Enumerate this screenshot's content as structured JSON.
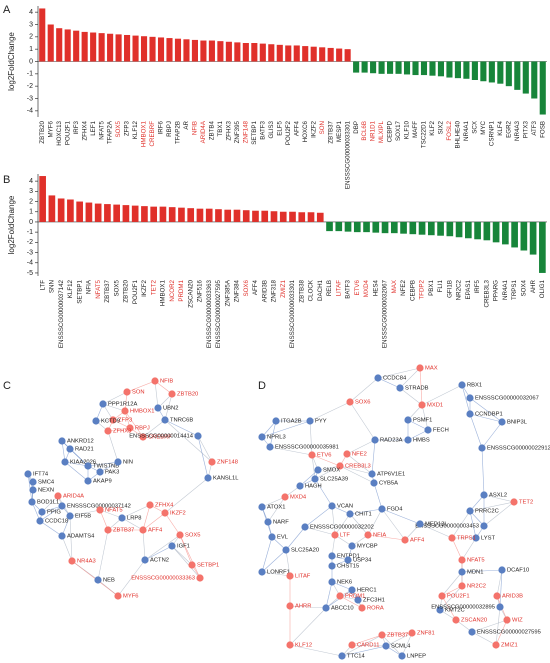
{
  "chart_data": [
    {
      "type": "bar",
      "panel": "A",
      "ylabel": "log2FoldChange",
      "categories": [
        "ZBTB20",
        "MYF6",
        "HOXC13",
        "POU2F1",
        "IRF3",
        "ZFHX4",
        "LEF1",
        "NFAT5",
        "TFAP2A",
        "SOX5",
        "ZFP3",
        "KLF12",
        "HMBOX1",
        "CREBRF",
        "IRF6",
        "RBPJ",
        "TFAP2B",
        "AR",
        "NFIB",
        "ARID4A",
        "ZBTB4",
        "TBX1",
        "ZFHX3",
        "ZNF395",
        "ZNF148",
        "SETBP1",
        "BATF3",
        "GLIS3",
        "ELF5",
        "POU2F2",
        "AFF4",
        "HOXC6",
        "IKZF2",
        "SON",
        "ZBTB37",
        "MESP1",
        "ENSSSCG00000033301",
        "DBP",
        "BCL6B",
        "NR1D1",
        "MLXIPL",
        "CEBPD",
        "SOX17",
        "KLF10",
        "MAFF",
        "TSC22D1",
        "KLF2",
        "SIX2",
        "FOSL2",
        "BHLHE40",
        "NR4A1",
        "SCX",
        "MYC",
        "CSRNP1",
        "KLF4",
        "EGR2",
        "NR4A3",
        "PITX3",
        "ATF3",
        "FOSB"
      ],
      "values": [
        4.3,
        3.0,
        2.7,
        2.6,
        2.5,
        2.4,
        2.35,
        2.3,
        2.25,
        2.2,
        2.15,
        2.1,
        2.05,
        2.0,
        1.95,
        1.9,
        1.85,
        1.8,
        1.75,
        1.7,
        1.7,
        1.65,
        1.6,
        1.55,
        1.5,
        1.5,
        1.45,
        1.4,
        1.35,
        1.3,
        1.3,
        1.25,
        1.2,
        1.15,
        1.1,
        1.05,
        1.0,
        -0.9,
        -0.9,
        -0.95,
        -1.0,
        -1.0,
        -1.0,
        -1.05,
        -1.1,
        -1.1,
        -1.15,
        -1.2,
        -1.3,
        -1.35,
        -1.4,
        -1.5,
        -1.6,
        -1.7,
        -1.8,
        -2.0,
        -2.3,
        -2.6,
        -3.0,
        -4.3
      ],
      "label_colors": [
        "#222",
        "#222",
        "#222",
        "#222",
        "#222",
        "#222",
        "#222",
        "#222",
        "#222",
        "#e0302a",
        "#222",
        "#222",
        "#e0302a",
        "#e0302a",
        "#222",
        "#222",
        "#222",
        "#222",
        "#e0302a",
        "#e0302a",
        "#222",
        "#222",
        "#222",
        "#222",
        "#e0302a",
        "#222",
        "#222",
        "#222",
        "#222",
        "#222",
        "#222",
        "#222",
        "#222",
        "#e0302a",
        "#222",
        "#222",
        "#222",
        "#222",
        "#e0302a",
        "#e0302a",
        "#e0302a",
        "#222",
        "#222",
        "#222",
        "#222",
        "#222",
        "#222",
        "#222",
        "#e0302a",
        "#222",
        "#222",
        "#222",
        "#222",
        "#222",
        "#222",
        "#222",
        "#222",
        "#222",
        "#222",
        "#222"
      ],
      "colors": {
        "positive": "#e0302a",
        "negative": "#17853a"
      },
      "ylim": [
        -4.5,
        4.5
      ],
      "yticks": [
        4,
        3,
        2,
        1,
        0,
        -1,
        -2,
        -3,
        -4
      ]
    },
    {
      "type": "bar",
      "panel": "B",
      "ylabel": "log2FoldChange",
      "categories": [
        "LTF",
        "SNN",
        "ENSSSCG00000037142",
        "KLF12",
        "SETBP1",
        "NFIA",
        "NFAT5",
        "ZBTB37",
        "SOX5",
        "ZBTB20",
        "POU2F1",
        "IKZF2",
        "TET2",
        "HMBOX1",
        "NCOR2",
        "PRDM1",
        "ZSCAN20",
        "ZNF516",
        "ENSSSCG00000033363",
        "ENSSSCG00000027595",
        "ZNF385A",
        "ZNF384",
        "SOX6",
        "AFF4",
        "ARID3B",
        "ZNF318",
        "ZMIZ1",
        "ENSSSCG00000033301",
        "ZBTB38",
        "CLOCK",
        "DACH1",
        "RELB",
        "LITAF",
        "BATF3",
        "ETV6",
        "MXD4",
        "HES4",
        "ENSSSCG00000032067",
        "MAX",
        "NFE2",
        "CEBPB",
        "TFDP2",
        "PBX1",
        "FLI1",
        "GFI1B",
        "NR2C2",
        "EPAS1",
        "IRF5",
        "CREB3L3",
        "PPARG",
        "NR4A1",
        "TRPS1",
        "SOX4",
        "AHR",
        "OLIG1"
      ],
      "values": [
        4.5,
        2.6,
        2.3,
        2.2,
        2.0,
        1.9,
        1.8,
        1.75,
        1.7,
        1.65,
        1.6,
        1.55,
        1.5,
        1.5,
        1.45,
        1.4,
        1.35,
        1.3,
        1.3,
        1.25,
        1.2,
        1.2,
        1.15,
        1.1,
        1.1,
        1.05,
        1.0,
        1.0,
        0.95,
        0.95,
        0.9,
        -0.9,
        -0.9,
        -0.95,
        -1.0,
        -1.0,
        -1.05,
        -1.1,
        -1.1,
        -1.15,
        -1.2,
        -1.25,
        -1.3,
        -1.35,
        -1.4,
        -1.5,
        -1.6,
        -1.7,
        -1.8,
        -2.0,
        -2.2,
        -2.5,
        -2.8,
        -3.2,
        -5.0
      ],
      "label_colors": [
        "#222",
        "#222",
        "#222",
        "#222",
        "#222",
        "#222",
        "#e0302a",
        "#222",
        "#222",
        "#222",
        "#222",
        "#222",
        "#e0302a",
        "#222",
        "#e0302a",
        "#e0302a",
        "#222",
        "#222",
        "#222",
        "#222",
        "#222",
        "#222",
        "#e0302a",
        "#222",
        "#222",
        "#222",
        "#e0302a",
        "#222",
        "#222",
        "#222",
        "#222",
        "#222",
        "#e0302a",
        "#222",
        "#e0302a",
        "#e0302a",
        "#222",
        "#222",
        "#e0302a",
        "#222",
        "#222",
        "#e0302a",
        "#222",
        "#222",
        "#222",
        "#222",
        "#222",
        "#222",
        "#222",
        "#222",
        "#222",
        "#222",
        "#222",
        "#222",
        "#222"
      ],
      "colors": {
        "positive": "#e0302a",
        "negative": "#17853a"
      },
      "ylim": [
        -5.3,
        4.7
      ],
      "yticks": [
        4,
        3,
        2,
        1,
        0,
        -1,
        -2,
        -3,
        -4,
        -5
      ]
    }
  ],
  "networks": [
    {
      "panel": "C",
      "nodes": [
        {
          "label": "NFIB",
          "color": "#f4736b"
        },
        {
          "label": "SON",
          "color": "#f4736b"
        },
        {
          "label": "ZBTB20",
          "color": "#f4736b"
        },
        {
          "label": "PPP1R12A",
          "color": "#5a7fc2"
        },
        {
          "label": "UBN2",
          "color": "#5a7fc2"
        },
        {
          "label": "HMBOX1",
          "color": "#f4736b"
        },
        {
          "label": "ZFP3",
          "color": "#f4736b"
        },
        {
          "label": "KCTD9",
          "color": "#5a7fc2"
        },
        {
          "label": "TNRC6B",
          "color": "#5a7fc2"
        },
        {
          "label": "RBPJ",
          "color": "#f4736b"
        },
        {
          "label": "ZFHX3",
          "color": "#f4736b"
        },
        {
          "label": "CREBRF",
          "color": "#f4736b"
        },
        {
          "label": "ENSSSCG00000014414",
          "color": "#5a7fc2"
        },
        {
          "label": "ANKRD12",
          "color": "#5a7fc2"
        },
        {
          "label": "RAD21",
          "color": "#5a7fc2"
        },
        {
          "label": "KIAA2026",
          "color": "#5a7fc2"
        },
        {
          "label": "TWISTNB",
          "color": "#5a7fc2"
        },
        {
          "label": "NIN",
          "color": "#5a7fc2"
        },
        {
          "label": "PAK3",
          "color": "#5a7fc2"
        },
        {
          "label": "AKAP9",
          "color": "#5a7fc2"
        },
        {
          "label": "IFT74",
          "color": "#5a7fc2"
        },
        {
          "label": "SMC4",
          "color": "#5a7fc2"
        },
        {
          "label": "NEXN",
          "color": "#5a7fc2"
        },
        {
          "label": "ARID4A",
          "color": "#f4736b"
        },
        {
          "label": "BOD1L1",
          "color": "#5a7fc2"
        },
        {
          "label": "ENSSSCG00000037142",
          "color": "#5a7fc2"
        },
        {
          "label": "PPIG",
          "color": "#5a7fc2"
        },
        {
          "label": "EIF5B",
          "color": "#5a7fc2"
        },
        {
          "label": "CCDC18",
          "color": "#5a7fc2"
        },
        {
          "label": "ZNF148",
          "color": "#f4736b"
        },
        {
          "label": "KANSL1L",
          "color": "#5a7fc2"
        },
        {
          "label": "NFAT5",
          "color": "#f4736b"
        },
        {
          "label": "LRP8",
          "color": "#5a7fc2"
        },
        {
          "label": "ZBTB37",
          "color": "#f4736b"
        },
        {
          "label": "ZFHX4",
          "color": "#f4736b"
        },
        {
          "label": "IKZF2",
          "color": "#f4736b"
        },
        {
          "label": "AFF4",
          "color": "#f4736b"
        },
        {
          "label": "SOX5",
          "color": "#f4736b"
        },
        {
          "label": "IGF1",
          "color": "#5a7fc2"
        },
        {
          "label": "ADAMTS4",
          "color": "#5a7fc2"
        },
        {
          "label": "ACTN2",
          "color": "#5a7fc2"
        },
        {
          "label": "NR4A3",
          "color": "#f4736b"
        },
        {
          "label": "SETBP1",
          "color": "#f4736b"
        },
        {
          "label": "ENSSSCG00000033363",
          "color": "#f4736b"
        },
        {
          "label": "NEB",
          "color": "#5a7fc2"
        },
        {
          "label": "MYF6",
          "color": "#f4736b"
        }
      ]
    },
    {
      "panel": "D",
      "nodes": [
        {
          "label": "MAX",
          "color": "#f4736b"
        },
        {
          "label": "CCDC84",
          "color": "#5a7fc2"
        },
        {
          "label": "RBX1",
          "color": "#5a7fc2"
        },
        {
          "label": "STRADB",
          "color": "#5a7fc2"
        },
        {
          "label": "ENSSSCG00000032067",
          "color": "#5a7fc2"
        },
        {
          "label": "SOX6",
          "color": "#f4736b"
        },
        {
          "label": "MXD1",
          "color": "#f4736b"
        },
        {
          "label": "CCNDBP1",
          "color": "#5a7fc2"
        },
        {
          "label": "PSMF1",
          "color": "#5a7fc2"
        },
        {
          "label": "BNIP3L",
          "color": "#5a7fc2"
        },
        {
          "label": "ITGA2B",
          "color": "#5a7fc2"
        },
        {
          "label": "PYY",
          "color": "#5a7fc2"
        },
        {
          "label": "FECH",
          "color": "#5a7fc2"
        },
        {
          "label": "HMBS",
          "color": "#5a7fc2"
        },
        {
          "label": "RAD23A",
          "color": "#5a7fc2"
        },
        {
          "label": "ENSSSCG00000022912",
          "color": "#5a7fc2"
        },
        {
          "label": "NPRL3",
          "color": "#5a7fc2"
        },
        {
          "label": "ENSSSCG00000035981",
          "color": "#5a7fc2"
        },
        {
          "label": "ETV6",
          "color": "#f4736b"
        },
        {
          "label": "NFE2",
          "color": "#f4736b"
        },
        {
          "label": "CREB3L3",
          "color": "#f4736b"
        },
        {
          "label": "SMOX",
          "color": "#5a7fc2"
        },
        {
          "label": "SLC25A39",
          "color": "#5a7fc2"
        },
        {
          "label": "HAGH",
          "color": "#5a7fc2"
        },
        {
          "label": "ATP6V1E1",
          "color": "#5a7fc2"
        },
        {
          "label": "CYB5A",
          "color": "#5a7fc2"
        },
        {
          "label": "MXD4",
          "color": "#f4736b"
        },
        {
          "label": "ATOX1",
          "color": "#5a7fc2"
        },
        {
          "label": "NARF",
          "color": "#5a7fc2"
        },
        {
          "label": "EVL",
          "color": "#5a7fc2"
        },
        {
          "label": "VCAN",
          "color": "#5a7fc2"
        },
        {
          "label": "CHIT1",
          "color": "#5a7fc2"
        },
        {
          "label": "ENSSSCG00000032202",
          "color": "#5a7fc2"
        },
        {
          "label": "FGD4",
          "color": "#5a7fc2"
        },
        {
          "label": "LTF",
          "color": "#f4736b"
        },
        {
          "label": "NFIA",
          "color": "#f4736b"
        },
        {
          "label": "ASXL2",
          "color": "#5a7fc2"
        },
        {
          "label": "TET2",
          "color": "#f4736b"
        },
        {
          "label": "PRRC2C",
          "color": "#5a7fc2"
        },
        {
          "label": "ENSSSCG00000003453",
          "color": "#5a7fc2"
        },
        {
          "label": "LYST",
          "color": "#5a7fc2"
        },
        {
          "label": "TRPS1",
          "color": "#f4736b"
        },
        {
          "label": "MED13L",
          "color": "#5a7fc2"
        },
        {
          "label": "AFF4",
          "color": "#f4736b"
        },
        {
          "label": "NFAT5",
          "color": "#f4736b"
        },
        {
          "label": "SLC25A20",
          "color": "#5a7fc2"
        },
        {
          "label": "ENTPD1",
          "color": "#5a7fc2"
        },
        {
          "label": "CHST15",
          "color": "#5a7fc2"
        },
        {
          "label": "MYCBP",
          "color": "#5a7fc2"
        },
        {
          "label": "USP34",
          "color": "#5a7fc2"
        },
        {
          "label": "LONRF1",
          "color": "#5a7fc2"
        },
        {
          "label": "LITAF",
          "color": "#f4736b"
        },
        {
          "label": "NEK6",
          "color": "#5a7fc2"
        },
        {
          "label": "HERC1",
          "color": "#5a7fc2"
        },
        {
          "label": "MDN1",
          "color": "#5a7fc2"
        },
        {
          "label": "DCAF10",
          "color": "#5a7fc2"
        },
        {
          "label": "ZFC3H1",
          "color": "#5a7fc2"
        },
        {
          "label": "ABCC10",
          "color": "#5a7fc2"
        },
        {
          "label": "AHRR",
          "color": "#f4736b"
        },
        {
          "label": "PRDM1",
          "color": "#f4736b"
        },
        {
          "label": "RORA",
          "color": "#f4736b"
        },
        {
          "label": "NR2C2",
          "color": "#f4736b"
        },
        {
          "label": "POU2F1",
          "color": "#f4736b"
        },
        {
          "label": "KMT2C",
          "color": "#5a7fc2"
        },
        {
          "label": "ARID3B",
          "color": "#f4736b"
        },
        {
          "label": "ENSSSCG00000032895",
          "color": "#5a7fc2"
        },
        {
          "label": "ZSCAN20",
          "color": "#f4736b"
        },
        {
          "label": "WIZ",
          "color": "#f4736b"
        },
        {
          "label": "ENSSSCG00000027595",
          "color": "#5a7fc2"
        },
        {
          "label": "ZMIZ1",
          "color": "#f4736b"
        },
        {
          "label": "ZNF81",
          "color": "#f4736b"
        },
        {
          "label": "ZBTB37",
          "color": "#f4736b"
        },
        {
          "label": "SCML4",
          "color": "#5a7fc2"
        },
        {
          "label": "LNPEP",
          "color": "#5a7fc2"
        },
        {
          "label": "CARD11",
          "color": "#f4736b"
        },
        {
          "label": "KLF12",
          "color": "#f4736b"
        },
        {
          "label": "TTC14",
          "color": "#5a7fc2"
        }
      ]
    }
  ]
}
